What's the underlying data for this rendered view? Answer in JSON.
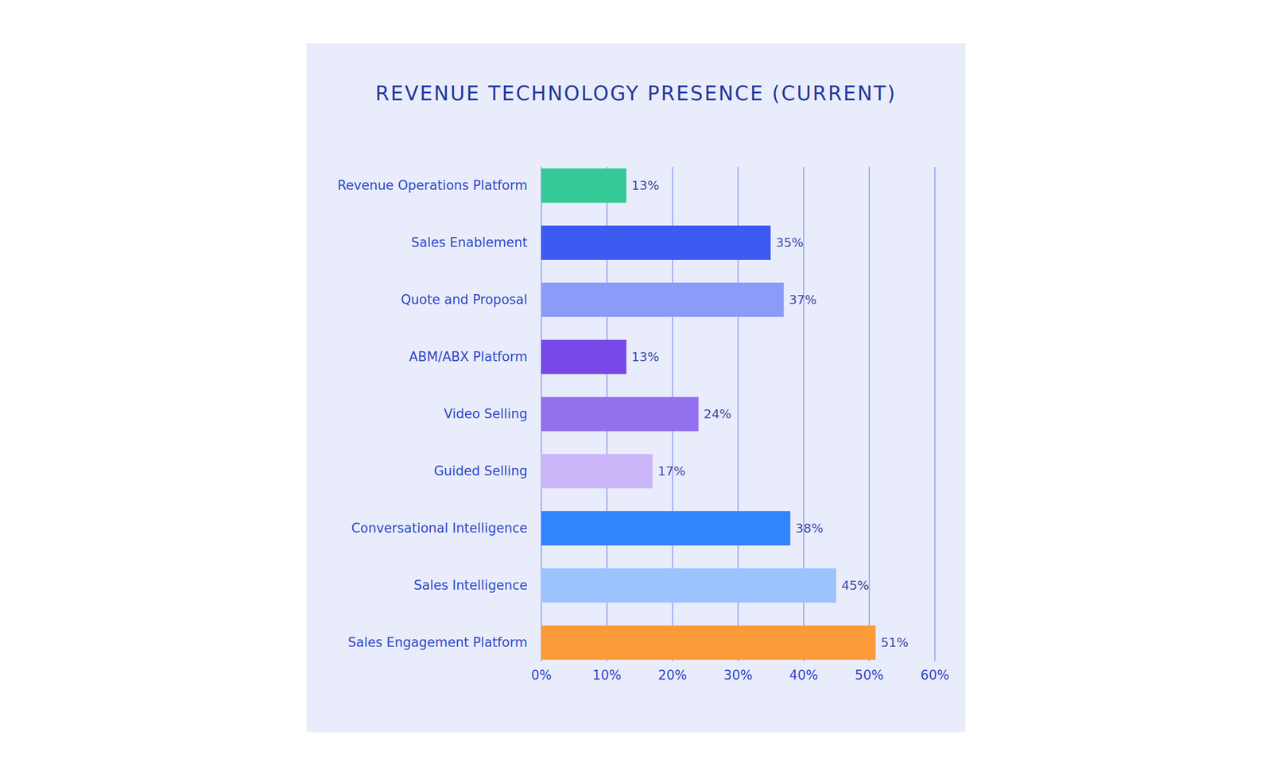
{
  "chart_data": {
    "type": "bar",
    "title": "REVENUE TECHNOLOGY PRESENCE (CURRENT)",
    "orientation": "horizontal",
    "categories": [
      "Revenue Operations Platform",
      "Sales Enablement",
      "Quote and Proposal",
      "ABM/ABX Platform",
      "Video Selling",
      "Guided Selling",
      "Conversational Intelligence",
      "Sales Intelligence",
      "Sales Engagement Platform"
    ],
    "values": [
      13,
      35,
      37,
      13,
      24,
      17,
      38,
      45,
      51
    ],
    "value_labels": [
      "13%",
      "35%",
      "37%",
      "13%",
      "24%",
      "17%",
      "38%",
      "45%",
      "51%"
    ],
    "colors": [
      "#34c997",
      "#3d5af1",
      "#8a9cf8",
      "#7747e8",
      "#9370ee",
      "#cbb6f9",
      "#3185fc",
      "#9cc3fd",
      "#fd9a38"
    ],
    "xlim": [
      0,
      60
    ],
    "xticks": [
      {
        "value": 0,
        "label": "0%"
      },
      {
        "value": 10,
        "label": "10%"
      },
      {
        "value": 20,
        "label": "20%"
      },
      {
        "value": 30,
        "label": "30%"
      },
      {
        "value": 40,
        "label": "40%"
      },
      {
        "value": 50,
        "label": "50%"
      },
      {
        "value": 60,
        "label": "60%"
      }
    ],
    "grid": true,
    "data_labels": true
  }
}
